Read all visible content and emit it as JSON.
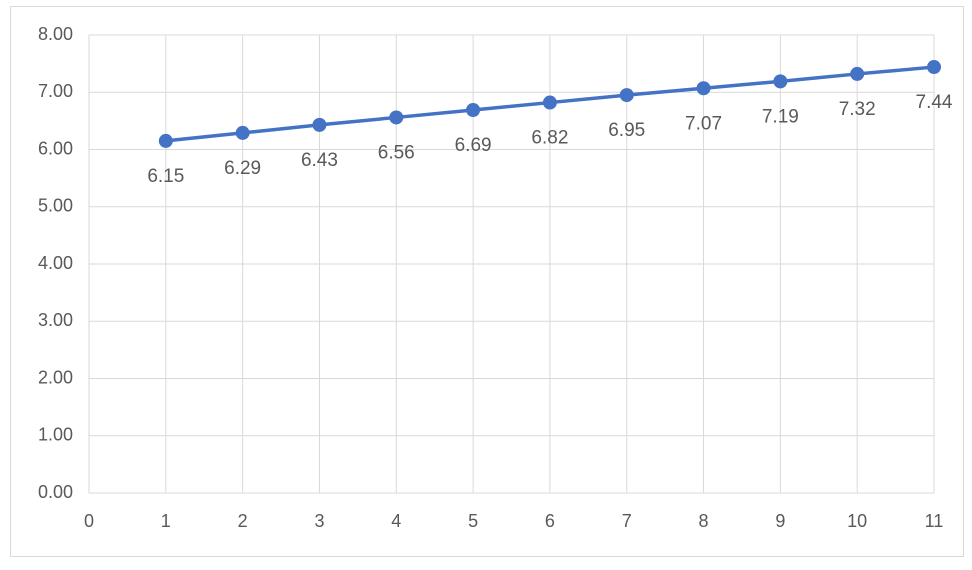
{
  "chart_data": {
    "type": "line",
    "x": [
      1,
      2,
      3,
      4,
      5,
      6,
      7,
      8,
      9,
      10,
      11
    ],
    "series": [
      {
        "color": "#4472c4",
        "values": [
          6.15,
          6.29,
          6.43,
          6.56,
          6.69,
          6.82,
          6.95,
          7.07,
          7.19,
          7.32,
          7.44
        ]
      }
    ],
    "xlim": [
      0,
      11
    ],
    "xticks": [
      0,
      1,
      2,
      3,
      4,
      5,
      6,
      7,
      8,
      9,
      10,
      11
    ],
    "ylim": [
      0,
      8
    ],
    "yticks": [
      {
        "value": 0,
        "label": "0.00"
      },
      {
        "value": 1,
        "label": "1.00"
      },
      {
        "value": 2,
        "label": "2.00"
      },
      {
        "value": 3,
        "label": "3.00"
      },
      {
        "value": 4,
        "label": "4.00"
      },
      {
        "value": 5,
        "label": "5.00"
      },
      {
        "value": 6,
        "label": "6.00"
      },
      {
        "value": 7,
        "label": "7.00"
      },
      {
        "value": 8,
        "label": "8.00"
      }
    ],
    "grid": true
  }
}
